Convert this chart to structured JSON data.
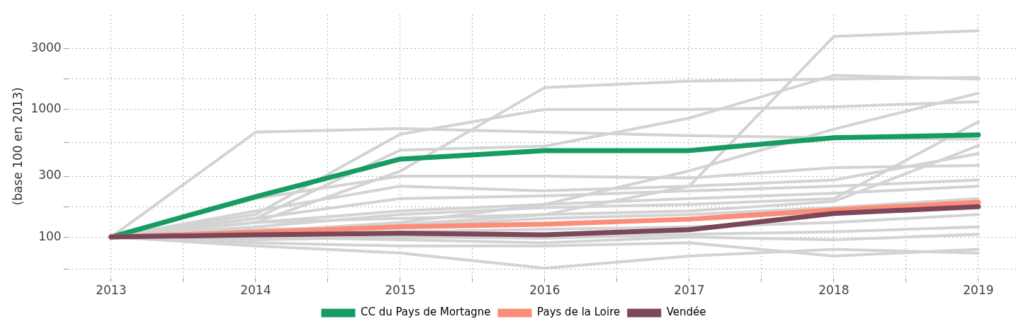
{
  "chart_data": {
    "type": "line",
    "ylabel": "(base 100 en 2013)",
    "x": [
      2013,
      2014,
      2015,
      2016,
      2017,
      2018,
      2019
    ],
    "xlim": [
      2012.7,
      2019.28
    ],
    "xticks": [
      2013,
      {
        "value": 2013.5,
        "label": null
      },
      2014,
      {
        "value": 2014.5,
        "label": null
      },
      2015,
      {
        "value": 2015.5,
        "label": null
      },
      2016,
      {
        "value": 2016.5,
        "label": null
      },
      2017,
      {
        "value": 2017.5,
        "label": null
      },
      2018,
      {
        "value": 2018.5,
        "label": null
      },
      2019
    ],
    "ylim": [
      48,
      5500
    ],
    "yticks": [
      {
        "value": 56,
        "label": null
      },
      100,
      {
        "value": 173,
        "label": null
      },
      300,
      {
        "value": 548,
        "label": null
      },
      1000,
      {
        "value": 1732,
        "label": null
      },
      3000
    ],
    "log": "y",
    "grid": true,
    "legend": "bottom",
    "marker": "none",
    "line_style": "solid",
    "series": [
      {
        "color": "#d3d3d3",
        "values": [
          100,
          664,
          708,
          664,
          623,
          600,
          585
        ]
      },
      {
        "color": "#d3d3d3",
        "values": [
          100,
          130,
          140,
          150,
          250,
          3735,
          4140
        ]
      },
      {
        "color": "#d3d3d3",
        "values": [
          100,
          130,
          328,
          1486,
          1668,
          1730,
          1780
        ]
      },
      {
        "color": "#d3d3d3",
        "values": [
          100,
          150,
          640,
          1000,
          1000,
          1050,
          1150
        ]
      },
      {
        "color": "#d3d3d3",
        "values": [
          100,
          140,
          480,
          515,
          855,
          1850,
          1730
        ]
      },
      {
        "color": "#d3d3d3",
        "values": [
          100,
          200,
          300,
          300,
          290,
          350,
          364
        ]
      },
      {
        "color": "#d3d3d3",
        "values": [
          100,
          85,
          75,
          57,
          71,
          80,
          75
        ]
      },
      {
        "color": "#d3d3d3",
        "values": [
          100,
          90,
          85,
          85,
          90,
          71,
          80
        ]
      },
      {
        "color": "#d3d3d3",
        "values": [
          100,
          140,
          200,
          210,
          230,
          250,
          280
        ]
      },
      {
        "color": "#d3d3d3",
        "values": [
          100,
          120,
          150,
          170,
          180,
          200,
          800
        ]
      },
      {
        "color": "#d3d3d3",
        "values": [
          100,
          110,
          130,
          180,
          330,
          700,
          1340
        ]
      },
      {
        "color": "#d3d3d3",
        "values": [
          100,
          160,
          250,
          230,
          250,
          280,
          450
        ]
      },
      {
        "color": "#d3d3d3",
        "values": [
          100,
          105,
          110,
          115,
          120,
          130,
          150
        ]
      },
      {
        "color": "#d3d3d3",
        "values": [
          100,
          95,
          100,
          98,
          105,
          110,
          120
        ]
      },
      {
        "color": "#d3d3d3",
        "values": [
          100,
          115,
          120,
          140,
          150,
          170,
          200
        ]
      },
      {
        "color": "#d3d3d3",
        "values": [
          100,
          100,
          95,
          90,
          100,
          95,
          105
        ]
      },
      {
        "color": "#d3d3d3",
        "values": [
          100,
          130,
          160,
          180,
          200,
          220,
          250
        ]
      },
      {
        "color": "#d3d3d3",
        "values": [
          100,
          108,
          125,
          150,
          160,
          190,
          520
        ]
      },
      {
        "name": "CC du Pays de Mortagne",
        "color": "#169b62",
        "values": [
          100,
          207,
          408,
          476,
          476,
          600,
          631
        ]
      },
      {
        "name": "Pays de la Loire",
        "color": "#fc8d7a",
        "values": [
          100,
          109,
          120,
          126,
          138,
          163,
          187
        ]
      },
      {
        "name": "Vendée",
        "color": "#7b4759",
        "values": [
          100,
          104,
          107,
          104,
          114,
          153,
          173
        ]
      }
    ]
  }
}
